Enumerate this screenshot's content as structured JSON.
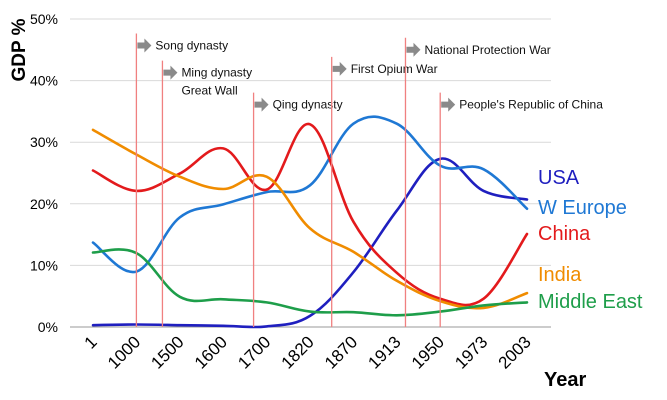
{
  "chart_data": {
    "type": "line",
    "ylabel": "GDP %",
    "xlabel": "Year",
    "ylim": [
      0,
      50
    ],
    "y_ticks": [
      "0%",
      "10%",
      "20%",
      "30%",
      "40%",
      "50%"
    ],
    "categories": [
      "1",
      "1000",
      "1500",
      "1600",
      "1700",
      "1820",
      "1870",
      "1913",
      "1950",
      "1973",
      "2003"
    ],
    "grid": "horizontal",
    "series": [
      {
        "name": "USA",
        "color": "#1f1fbf",
        "values": [
          0.3,
          0.4,
          0.3,
          0.2,
          0.1,
          1.8,
          8.9,
          18.9,
          27.3,
          22.1,
          20.7
        ]
      },
      {
        "name": "W Europe",
        "color": "#1f78d4",
        "values": [
          13.7,
          9.0,
          17.8,
          19.9,
          21.9,
          23.0,
          33.0,
          33.0,
          26.2,
          25.6,
          19.2
        ]
      },
      {
        "name": "China",
        "color": "#e31a1c",
        "values": [
          25.4,
          22.1,
          24.9,
          29.0,
          22.3,
          32.9,
          17.1,
          8.8,
          4.6,
          4.6,
          15.1
        ]
      },
      {
        "name": "India",
        "color": "#f08c00",
        "values": [
          32.0,
          28.0,
          24.4,
          22.4,
          24.4,
          16.0,
          12.2,
          7.5,
          4.2,
          3.1,
          5.5
        ]
      },
      {
        "name": "Middle East",
        "color": "#1e9e4a",
        "values": [
          12.1,
          12.0,
          4.9,
          4.5,
          4.0,
          2.5,
          2.4,
          1.9,
          2.5,
          3.5,
          4.0
        ]
      }
    ],
    "annotations": [
      {
        "line_x": 1.0,
        "label_lines": [
          "Song dynasty"
        ],
        "label_y": 45.7
      },
      {
        "line_x": 1.6,
        "label_lines": [
          "Ming dynasty",
          "Great Wall"
        ],
        "label_y": 41.3
      },
      {
        "line_x": 3.7,
        "label_lines": [
          "Qing dynasty"
        ],
        "label_y": 36.1
      },
      {
        "line_x": 5.5,
        "label_lines": [
          "First Opium War"
        ],
        "label_y": 41.9
      },
      {
        "line_x": 7.2,
        "label_lines": [
          "National Protection War"
        ],
        "label_y": 45.0
      },
      {
        "line_x": 8.0,
        "label_lines": [
          "People's Republic of China"
        ],
        "label_y": 36.1
      }
    ]
  }
}
